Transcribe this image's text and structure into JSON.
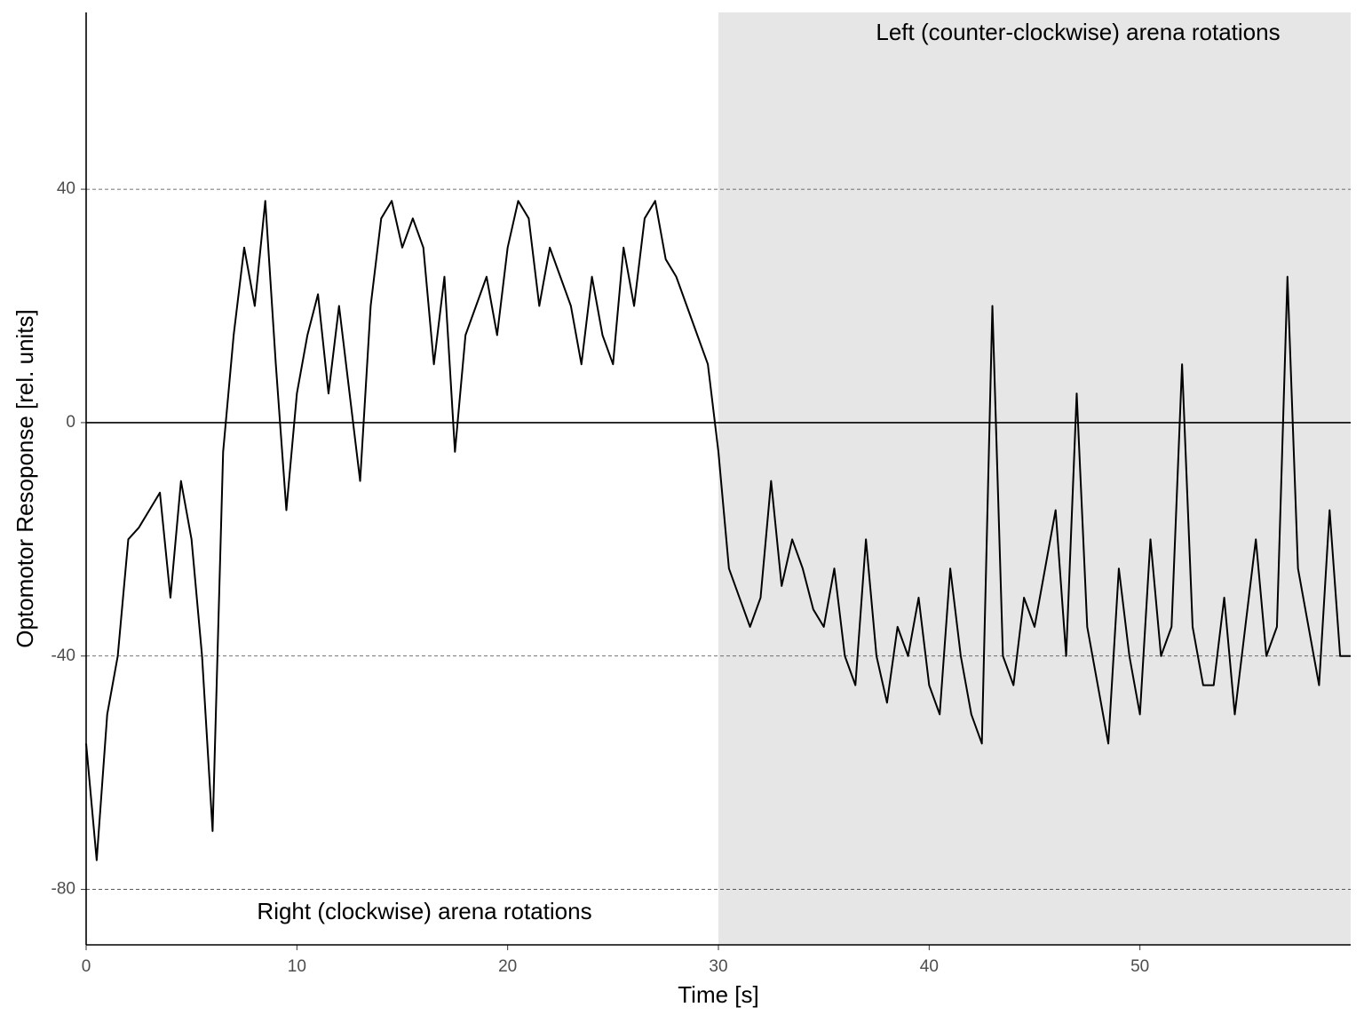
{
  "chart_data": {
    "type": "line",
    "x_label": "Time [s]",
    "y_label": "Optomotor Resoponse [rel. units]",
    "annotations": [
      "Left (counter-clockwise) arena rotations",
      "Right (clockwise) arena rotations"
    ],
    "highlight_xrange": [
      30,
      60
    ],
    "hline": 0,
    "xlim": [
      0,
      60
    ],
    "xticks": [
      0,
      10,
      20,
      30,
      40,
      50
    ],
    "ylim": [
      -89.5,
      70.3
    ],
    "yticks": [
      -80,
      -40,
      0,
      40
    ],
    "grid": true,
    "x": [
      0,
      0.5,
      1,
      1.5,
      2,
      2.5,
      3,
      3.5,
      4,
      4.5,
      5,
      5.5,
      6,
      6.5,
      7,
      7.5,
      8,
      8.5,
      9,
      9.5,
      10,
      10.5,
      11,
      11.5,
      12,
      12.5,
      13,
      13.5,
      14,
      14.5,
      15,
      15.5,
      16,
      16.5,
      17,
      17.5,
      18,
      18.5,
      19,
      19.5,
      20,
      20.5,
      21,
      21.5,
      22,
      22.5,
      23,
      23.5,
      24,
      24.5,
      25,
      25.5,
      26,
      26.5,
      27,
      27.5,
      28,
      28.5,
      29,
      29.5,
      30,
      30.5,
      31,
      31.5,
      32,
      32.5,
      33,
      33.5,
      34,
      34.5,
      35,
      35.5,
      36,
      36.5,
      37,
      37.5,
      38,
      38.5,
      39,
      39.5,
      40,
      40.5,
      41,
      41.5,
      42,
      42.5,
      43,
      43.5,
      44,
      44.5,
      45,
      45.5,
      46,
      46.5,
      47,
      47.5,
      48,
      48.5,
      49,
      49.5,
      50,
      50.5,
      51,
      51.5,
      52,
      52.5,
      53,
      53.5,
      54,
      54.5,
      55,
      55.5,
      56,
      56.5,
      57,
      57.5,
      58,
      58.5,
      59,
      59.5,
      60
    ],
    "series": [
      {
        "color": "#000000",
        "values": [
          -55,
          -75,
          -50,
          -40,
          -20,
          -18,
          -15,
          -12,
          -30,
          -10,
          -20,
          -40,
          -70,
          -5,
          15,
          30,
          20,
          38,
          10,
          -15,
          5,
          15,
          22,
          5,
          20,
          5,
          -10,
          20,
          35,
          38,
          30,
          35,
          30,
          10,
          25,
          -5,
          15,
          20,
          25,
          15,
          30,
          38,
          35,
          20,
          30,
          25,
          20,
          10,
          25,
          15,
          10,
          30,
          20,
          35,
          38,
          28,
          25,
          20,
          15,
          10,
          -5,
          -25,
          -30,
          -35,
          -30,
          -10,
          -28,
          -20,
          -25,
          -32,
          -35,
          -25,
          -40,
          -45,
          -20,
          -40,
          -48,
          -35,
          -40,
          -30,
          -45,
          -50,
          -25,
          -40,
          -50,
          -55,
          20,
          -40,
          -45,
          -30,
          -35,
          -25,
          -15,
          -40,
          5,
          -35,
          -45,
          -55,
          -25,
          -40,
          -50,
          -20,
          -40,
          -35,
          10,
          -35,
          -45,
          -45,
          -30,
          -50,
          -35,
          -20,
          -40,
          -35,
          25,
          -25,
          -35,
          -45,
          -15,
          -40,
          -40
        ]
      }
    ]
  }
}
